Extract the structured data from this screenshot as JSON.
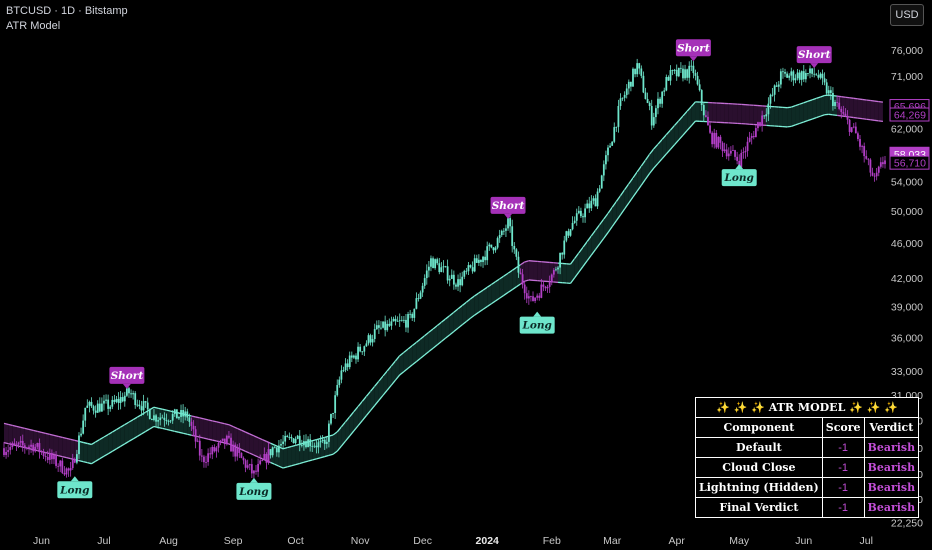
{
  "header": {
    "symbol_line": "BTCUSD · 1D · Bitstamp",
    "indicator": "ATR Model"
  },
  "currency_button": "USD",
  "colors": {
    "bull": "#6ee6cc",
    "bear": "#b23fc6",
    "band_bull": "#7ef0d8",
    "band_bear": "#c46fd6",
    "label_short": "#a531b8",
    "label_long": "#6ee6cc",
    "axis_text": "#c8c8c8"
  },
  "chart_data": {
    "type": "candlestick",
    "title": "BTCUSD · 1D · Bitstamp",
    "y_axis": {
      "side": "right",
      "scale": "log",
      "ticks": [
        "76,000",
        "71,000",
        "66,000",
        "62,000",
        "58,000",
        "54,000",
        "50,000",
        "46,000",
        "42,000",
        "39,000",
        "36,000",
        "33,000",
        "31,000",
        "29,000",
        "27,000",
        "25,250",
        "23,650",
        "22,250"
      ],
      "range": [
        22000,
        78000
      ]
    },
    "x_axis": {
      "ticks": [
        "Jun",
        "Jul",
        "Aug",
        "Sep",
        "Oct",
        "Nov",
        "Dec",
        "2024",
        "Feb",
        "Mar",
        "Apr",
        "May",
        "Jun",
        "Jul"
      ],
      "bold_tick": "2024",
      "range": [
        "2023-05-14",
        "2024-07-10"
      ]
    },
    "price_path": [
      [
        "2023-05-14",
        27000
      ],
      [
        "2023-05-28",
        27200
      ],
      [
        "2023-06-10",
        25800
      ],
      [
        "2023-06-15",
        25300
      ],
      [
        "2023-06-20",
        28300
      ],
      [
        "2023-06-22",
        30000
      ],
      [
        "2023-07-05",
        30200
      ],
      [
        "2023-07-13",
        31200
      ],
      [
        "2023-07-25",
        29300
      ],
      [
        "2023-08-10",
        29400
      ],
      [
        "2023-08-17",
        26200
      ],
      [
        "2023-08-29",
        27500
      ],
      [
        "2023-09-11",
        25200
      ],
      [
        "2023-09-20",
        27000
      ],
      [
        "2023-10-01",
        27800
      ],
      [
        "2023-10-15",
        27100
      ],
      [
        "2023-10-23",
        33000
      ],
      [
        "2023-11-09",
        36700
      ],
      [
        "2023-11-25",
        37700
      ],
      [
        "2023-12-05",
        44000
      ],
      [
        "2023-12-18",
        41500
      ],
      [
        "2024-01-08",
        46900
      ],
      [
        "2024-01-11",
        48500
      ],
      [
        "2024-01-16",
        42700
      ],
      [
        "2024-01-22",
        39500
      ],
      [
        "2024-02-02",
        42600
      ],
      [
        "2024-02-10",
        48200
      ],
      [
        "2024-02-22",
        51500
      ],
      [
        "2024-03-05",
        66000
      ],
      [
        "2024-03-13",
        73000
      ],
      [
        "2024-03-20",
        63500
      ],
      [
        "2024-03-28",
        71000
      ],
      [
        "2024-04-09",
        72000
      ],
      [
        "2024-04-17",
        60800
      ],
      [
        "2024-05-01",
        57000
      ],
      [
        "2024-05-15",
        66000
      ],
      [
        "2024-05-21",
        71000
      ],
      [
        "2024-06-07",
        71500
      ],
      [
        "2024-06-18",
        65000
      ],
      [
        "2024-06-26",
        61000
      ],
      [
        "2024-07-05",
        54000
      ],
      [
        "2024-07-10",
        57500
      ]
    ],
    "band_path": [
      [
        "2023-05-14",
        28100
      ],
      [
        "2023-06-25",
        26600
      ],
      [
        "2023-07-25",
        29300
      ],
      [
        "2023-08-30",
        28000
      ],
      [
        "2023-09-25",
        26300
      ],
      [
        "2023-10-20",
        27300
      ],
      [
        "2023-11-20",
        33500
      ],
      [
        "2023-12-25",
        39000
      ],
      [
        "2024-01-20",
        42900
      ],
      [
        "2024-02-10",
        42500
      ],
      [
        "2024-02-28",
        48500
      ],
      [
        "2024-03-20",
        57000
      ],
      [
        "2024-04-10",
        64800
      ],
      [
        "2024-05-01",
        64400
      ],
      [
        "2024-05-25",
        63800
      ],
      [
        "2024-06-12",
        66000
      ],
      [
        "2024-07-10",
        64700
      ]
    ],
    "price_tags": [
      {
        "text": "65,696",
        "value": 65696,
        "style": "outline"
      },
      {
        "text": "64,269",
        "value": 64269,
        "style": "outline"
      },
      {
        "text": "58,033",
        "value": 58033,
        "style": "fill"
      },
      {
        "text": "56,710",
        "value": 56710,
        "style": "outline"
      }
    ],
    "signals": [
      {
        "text": "Short",
        "date": "2023-07-12",
        "price": 31500,
        "type": "short"
      },
      {
        "text": "Long",
        "date": "2023-06-17",
        "price": 25100,
        "type": "long"
      },
      {
        "text": "Long",
        "date": "2023-09-11",
        "price": 25000,
        "type": "long"
      },
      {
        "text": "Short",
        "date": "2024-01-11",
        "price": 49000,
        "type": "short"
      },
      {
        "text": "Long",
        "date": "2024-01-25",
        "price": 38500,
        "type": "long"
      },
      {
        "text": "Short",
        "date": "2024-04-09",
        "price": 73800,
        "type": "short"
      },
      {
        "text": "Long",
        "date": "2024-05-01",
        "price": 56500,
        "type": "long"
      },
      {
        "text": "Short",
        "date": "2024-06-06",
        "price": 72500,
        "type": "short"
      }
    ]
  },
  "model_table": {
    "title": "✨ ✨ ✨  ATR MODEL ✨ ✨ ✨",
    "headers": [
      "Component",
      "Score",
      "Verdict"
    ],
    "rows": [
      {
        "component": "Default",
        "score": "-1",
        "verdict": "Bearish"
      },
      {
        "component": "Cloud Close",
        "score": "-1",
        "verdict": "Bearish"
      },
      {
        "component": "Lightning (Hidden)",
        "score": "-1",
        "verdict": "Bearish"
      },
      {
        "component": "Final Verdict",
        "score": "-1",
        "verdict": "Bearish"
      }
    ]
  }
}
